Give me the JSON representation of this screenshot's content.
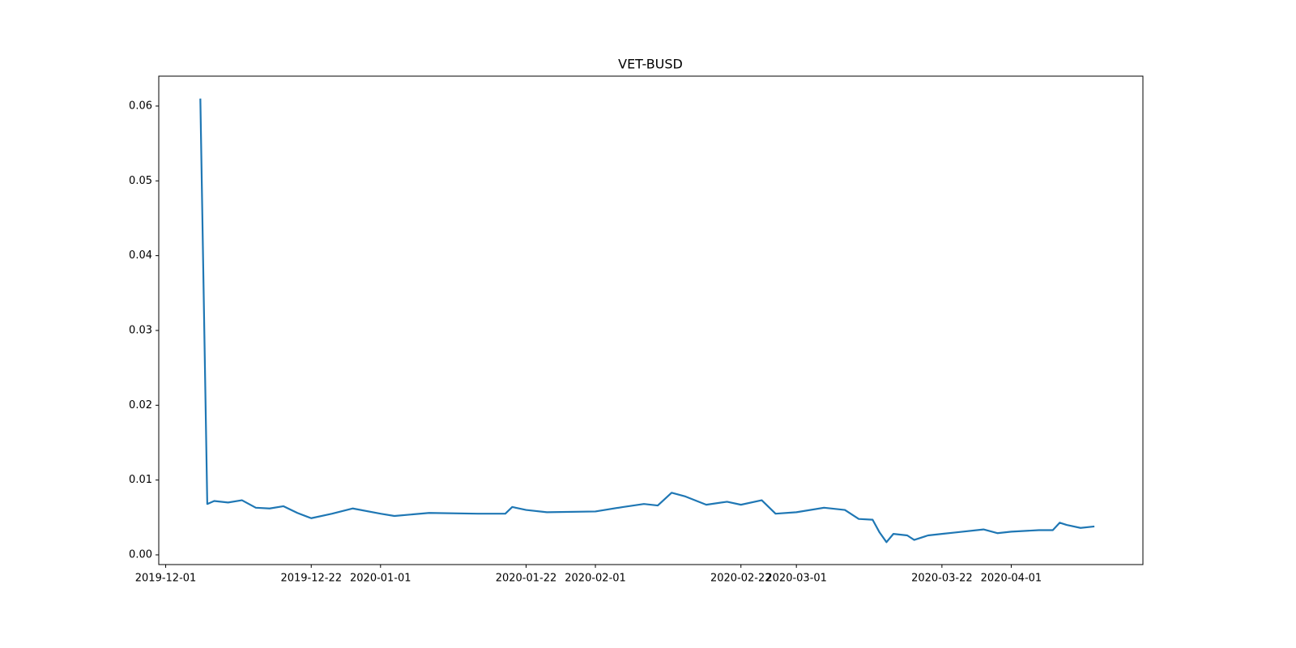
{
  "chart_data": {
    "type": "line",
    "title": "VET-BUSD",
    "x": [
      "2019-12-06",
      "2019-12-07",
      "2019-12-08",
      "2019-12-10",
      "2019-12-12",
      "2019-12-14",
      "2019-12-16",
      "2019-12-18",
      "2019-12-20",
      "2019-12-22",
      "2019-12-25",
      "2019-12-28",
      "2020-01-01",
      "2020-01-03",
      "2020-01-08",
      "2020-01-15",
      "2020-01-19",
      "2020-01-20",
      "2020-01-22",
      "2020-01-25",
      "2020-02-01",
      "2020-02-05",
      "2020-02-08",
      "2020-02-10",
      "2020-02-12",
      "2020-02-14",
      "2020-02-17",
      "2020-02-20",
      "2020-02-22",
      "2020-02-25",
      "2020-02-27",
      "2020-03-01",
      "2020-03-05",
      "2020-03-08",
      "2020-03-10",
      "2020-03-12",
      "2020-03-13",
      "2020-03-14",
      "2020-03-15",
      "2020-03-17",
      "2020-03-18",
      "2020-03-20",
      "2020-03-22",
      "2020-03-24",
      "2020-03-28",
      "2020-03-30",
      "2020-04-01",
      "2020-04-05",
      "2020-04-07",
      "2020-04-08",
      "2020-04-09",
      "2020-04-11",
      "2020-04-13"
    ],
    "series": [
      {
        "name": "VET-BUSD",
        "color": "#1f77b4",
        "values": [
          0.061,
          0.0068,
          0.0072,
          0.007,
          0.0073,
          0.0063,
          0.0062,
          0.0065,
          0.0056,
          0.0049,
          0.0055,
          0.0062,
          0.0055,
          0.0052,
          0.0056,
          0.0055,
          0.0055,
          0.0064,
          0.006,
          0.0057,
          0.0058,
          0.0064,
          0.0068,
          0.0066,
          0.0083,
          0.0078,
          0.0067,
          0.0071,
          0.0067,
          0.0073,
          0.0055,
          0.0057,
          0.0063,
          0.006,
          0.0048,
          0.0047,
          0.003,
          0.0017,
          0.0028,
          0.0026,
          0.002,
          0.0026,
          0.0028,
          0.003,
          0.0034,
          0.0029,
          0.0031,
          0.0033,
          0.0033,
          0.0043,
          0.004,
          0.0036,
          0.0038
        ]
      }
    ],
    "xlim": [
      "2019-11-30",
      "2020-04-20"
    ],
    "xticks": [
      "2019-12-01",
      "2019-12-22",
      "2020-01-01",
      "2020-01-22",
      "2020-02-01",
      "2020-02-22",
      "2020-03-01",
      "2020-03-22",
      "2020-04-01"
    ],
    "ylim": [
      -0.0013,
      0.064
    ],
    "yticks": [
      {
        "value": 0,
        "label": "0.00"
      },
      {
        "value": 0.01,
        "label": "0.01"
      },
      {
        "value": 0.02,
        "label": "0.02"
      },
      {
        "value": 0.03,
        "label": "0.03"
      },
      {
        "value": 0.04,
        "label": "0.04"
      },
      {
        "value": 0.05,
        "label": "0.05"
      },
      {
        "value": 0.06,
        "label": "0.06"
      }
    ],
    "grid": false
  }
}
